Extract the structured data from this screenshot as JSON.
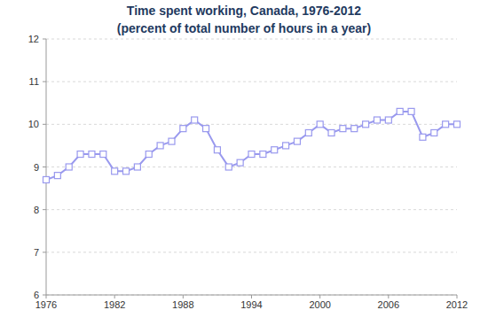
{
  "chart_data": {
    "type": "line",
    "title": "Time spent working, Canada, 1976-2012",
    "subtitle": "(percent of total number of hours in a year)",
    "x": [
      1976,
      1977,
      1978,
      1979,
      1980,
      1981,
      1982,
      1983,
      1984,
      1985,
      1986,
      1987,
      1988,
      1989,
      1990,
      1991,
      1992,
      1993,
      1994,
      1995,
      1996,
      1997,
      1998,
      1999,
      2000,
      2001,
      2002,
      2003,
      2004,
      2005,
      2006,
      2007,
      2008,
      2009,
      2010,
      2011,
      2012
    ],
    "values": [
      8.7,
      8.8,
      9.0,
      9.3,
      9.3,
      9.3,
      8.9,
      8.9,
      9.0,
      9.3,
      9.5,
      9.6,
      9.9,
      10.1,
      9.9,
      9.4,
      9.0,
      9.1,
      9.3,
      9.3,
      9.4,
      9.5,
      9.6,
      9.8,
      10.0,
      9.8,
      9.9,
      9.9,
      10.0,
      10.1,
      10.1,
      10.3,
      10.3,
      9.7,
      9.8,
      10.0,
      10.0
    ],
    "color": "#9999ee",
    "marker": "square",
    "xlim": [
      1976,
      2012
    ],
    "xticks": [
      1976,
      1982,
      1988,
      1994,
      2000,
      2006,
      2012
    ],
    "ylim": [
      6,
      12
    ],
    "yticks": [
      6,
      7,
      8,
      9,
      10,
      11,
      12
    ],
    "grid": true
  }
}
